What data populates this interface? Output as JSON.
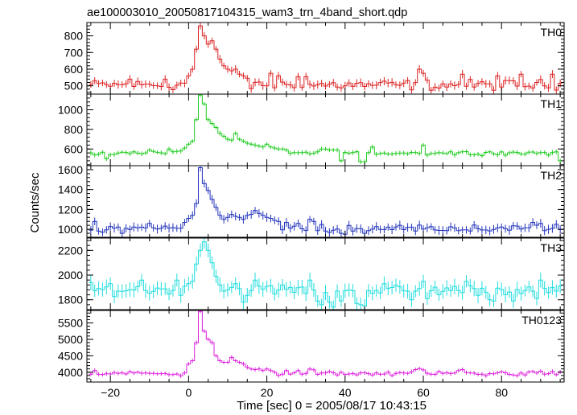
{
  "chart_data": {
    "type": "line",
    "style": "step-with-error-bars",
    "title": "ae100003010_20050817104315_wam3_trn_4band_short.qdp",
    "xlabel": "Time [sec] 0 = 2005/08/17 10:43:15",
    "ylabel": "Counts/sec",
    "xlim": [
      -26,
      96
    ],
    "x_ticks": [
      -20,
      0,
      20,
      40,
      60,
      80
    ],
    "bin_width": 1,
    "series": [
      {
        "name": "TH0",
        "color": "#dd2222",
        "ylim": [
          450,
          880
        ],
        "y_ticks": [
          500,
          600,
          700,
          800
        ],
        "quiet_level": 505,
        "noise": 22,
        "error": 22,
        "peak": [
          [
            -1,
            515
          ],
          [
            0,
            560
          ],
          [
            1,
            600
          ],
          [
            2,
            720
          ],
          [
            3,
            860
          ],
          [
            4,
            800
          ],
          [
            5,
            750
          ],
          [
            6,
            770
          ],
          [
            7,
            720
          ],
          [
            8,
            660
          ],
          [
            9,
            620
          ],
          [
            10,
            600
          ],
          [
            11,
            590
          ],
          [
            12,
            600
          ],
          [
            13,
            570
          ],
          [
            14,
            560
          ],
          [
            15,
            545
          ]
        ],
        "bumps": [
          [
            -15,
            540
          ],
          [
            -6,
            540
          ],
          [
            21,
            575
          ],
          [
            23,
            560
          ],
          [
            28,
            555
          ],
          [
            30,
            555
          ],
          [
            59,
            600
          ],
          [
            60,
            575
          ],
          [
            70,
            570
          ],
          [
            79,
            560
          ],
          [
            85,
            570
          ],
          [
            93,
            570
          ]
        ]
      },
      {
        "name": "TH1",
        "color": "#22cc22",
        "ylim": [
          430,
          1160
        ],
        "y_ticks": [
          600,
          800,
          1000
        ],
        "quiet_level": 560,
        "noise": 15,
        "error": 22,
        "peak": [
          [
            -2,
            580
          ],
          [
            -1,
            610
          ],
          [
            0,
            650
          ],
          [
            1,
            680
          ],
          [
            2,
            900
          ],
          [
            3,
            1150
          ],
          [
            4,
            1060
          ],
          [
            5,
            900
          ],
          [
            6,
            860
          ],
          [
            7,
            820
          ],
          [
            8,
            760
          ],
          [
            9,
            730
          ],
          [
            10,
            700
          ],
          [
            11,
            690
          ],
          [
            12,
            760
          ],
          [
            13,
            700
          ],
          [
            14,
            680
          ],
          [
            15,
            660
          ],
          [
            16,
            650
          ],
          [
            17,
            640
          ],
          [
            18,
            630
          ],
          [
            19,
            620
          ],
          [
            20,
            650
          ],
          [
            21,
            620
          ],
          [
            22,
            610
          ],
          [
            23,
            600
          ],
          [
            24,
            600
          ],
          [
            25,
            590
          ]
        ],
        "bumps": [
          [
            -5,
            600
          ],
          [
            -10,
            590
          ],
          [
            34,
            600
          ],
          [
            35,
            600
          ],
          [
            36,
            590
          ],
          [
            37,
            590
          ],
          [
            38,
            590
          ],
          [
            60,
            640
          ],
          [
            47,
            620
          ],
          [
            44,
            580
          ]
        ],
        "dips": [
          [
            -21,
            500
          ],
          [
            39,
            480
          ],
          [
            44,
            470
          ],
          [
            45,
            470
          ],
          [
            95,
            480
          ]
        ]
      },
      {
        "name": "TH2",
        "color": "#2233bb",
        "ylim": [
          920,
          1640
        ],
        "y_ticks": [
          1000,
          1200,
          1400,
          1600
        ],
        "quiet_level": 1010,
        "noise": 24,
        "error": 40,
        "peak": [
          [
            -1,
            1070
          ],
          [
            0,
            1110
          ],
          [
            1,
            1140
          ],
          [
            2,
            1260
          ],
          [
            3,
            1620
          ],
          [
            4,
            1460
          ],
          [
            5,
            1390
          ],
          [
            6,
            1300
          ],
          [
            7,
            1220
          ],
          [
            8,
            1140
          ],
          [
            9,
            1100
          ],
          [
            10,
            1120
          ],
          [
            11,
            1150
          ],
          [
            12,
            1130
          ],
          [
            13,
            1120
          ],
          [
            14,
            1100
          ],
          [
            15,
            1140
          ],
          [
            16,
            1150
          ],
          [
            17,
            1190
          ],
          [
            18,
            1160
          ],
          [
            19,
            1140
          ],
          [
            20,
            1120
          ],
          [
            21,
            1110
          ],
          [
            22,
            1090
          ],
          [
            23,
            1080
          ]
        ],
        "bumps": [
          [
            -24,
            1080
          ],
          [
            -10,
            1060
          ],
          [
            -1,
            1180
          ],
          [
            25,
            1070
          ],
          [
            28,
            1060
          ],
          [
            31,
            1100
          ],
          [
            32,
            1080
          ],
          [
            88,
            1070
          ],
          [
            90,
            1060
          ],
          [
            94,
            1050
          ]
        ],
        "dips": [
          [
            -22,
            970
          ],
          [
            -17,
            960
          ],
          [
            37,
            990
          ],
          [
            39,
            960
          ],
          [
            40,
            950
          ],
          [
            45,
            960
          ]
        ]
      },
      {
        "name": "TH3",
        "color": "#22dddd",
        "ylim": [
          1720,
          2300
        ],
        "y_ticks": [
          1800,
          2000,
          2200
        ],
        "quiet_level": 1880,
        "noise": 30,
        "error": 55,
        "peak": [
          [
            0,
            1930
          ],
          [
            1,
            1950
          ],
          [
            2,
            2090
          ],
          [
            3,
            2200
          ],
          [
            4,
            2270
          ],
          [
            5,
            2200
          ],
          [
            6,
            2100
          ],
          [
            7,
            1990
          ],
          [
            8,
            1920
          ],
          [
            9,
            1870
          ],
          [
            10,
            1880
          ],
          [
            11,
            1900
          ],
          [
            12,
            1930
          ],
          [
            13,
            1890
          ]
        ],
        "bumps": [
          [
            -25,
            1940
          ],
          [
            -20,
            1930
          ],
          [
            -12,
            1960
          ],
          [
            -3,
            1960
          ],
          [
            17,
            1960
          ],
          [
            24,
            1920
          ],
          [
            31,
            1960
          ],
          [
            50,
            1930
          ],
          [
            60,
            1950
          ],
          [
            71,
            1950
          ],
          [
            90,
            1960
          ],
          [
            95,
            1910
          ]
        ],
        "dips": [
          [
            14,
            1780
          ],
          [
            33,
            1790
          ],
          [
            34,
            1760
          ],
          [
            36,
            1780
          ],
          [
            37,
            1740
          ],
          [
            39,
            1790
          ],
          [
            43,
            1770
          ],
          [
            44,
            1760
          ],
          [
            45,
            1750
          ],
          [
            57,
            1800
          ],
          [
            61,
            1810
          ],
          [
            77,
            1800
          ],
          [
            78,
            1790
          ],
          [
            83,
            1790
          ],
          [
            89,
            1810
          ]
        ]
      },
      {
        "name": "TH0123",
        "color": "#dd22dd",
        "ylim": [
          3700,
          5880
        ],
        "y_ticks": [
          4000,
          4500,
          5000,
          5500
        ],
        "quiet_level": 3960,
        "noise": 45,
        "error": 60,
        "peak": [
          [
            -1,
            3980
          ],
          [
            0,
            4250
          ],
          [
            1,
            4350
          ],
          [
            2,
            4900
          ],
          [
            3,
            5850
          ],
          [
            4,
            5250
          ],
          [
            5,
            5000
          ],
          [
            6,
            4900
          ],
          [
            7,
            4500
          ],
          [
            8,
            4350
          ],
          [
            9,
            4300
          ],
          [
            10,
            4300
          ],
          [
            11,
            4450
          ],
          [
            12,
            4350
          ],
          [
            13,
            4300
          ],
          [
            14,
            4250
          ],
          [
            15,
            4150
          ],
          [
            16,
            4100
          ],
          [
            17,
            4080
          ],
          [
            18,
            4100
          ],
          [
            19,
            4050
          ],
          [
            20,
            4100
          ],
          [
            21,
            4050
          ],
          [
            22,
            4000
          ]
        ],
        "bumps": [
          [
            -24,
            4050
          ],
          [
            -13,
            4000
          ],
          [
            -1,
            4100
          ],
          [
            25,
            4050
          ],
          [
            28,
            4050
          ],
          [
            31,
            4100
          ],
          [
            32,
            4070
          ],
          [
            58,
            4080
          ],
          [
            59,
            4110
          ],
          [
            60,
            4070
          ],
          [
            69,
            4050
          ],
          [
            70,
            4080
          ],
          [
            88,
            4020
          ],
          [
            90,
            4030
          ]
        ]
      }
    ]
  }
}
